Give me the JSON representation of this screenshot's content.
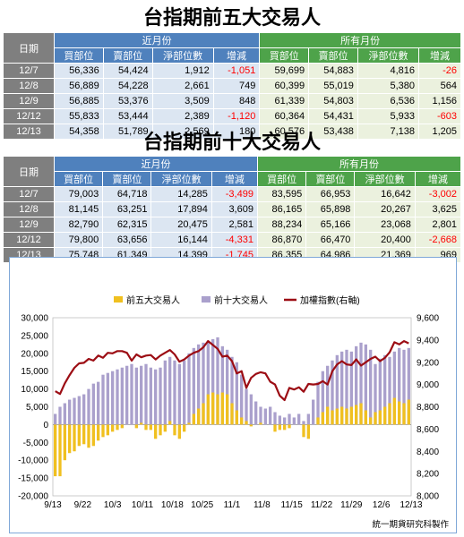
{
  "top5": {
    "title": "台指期前五大交易人",
    "date_header": "日期",
    "group_near": "近月份",
    "group_all": "所有月份",
    "col_headers": [
      "買部位",
      "賣部位",
      "淨部位數",
      "增減",
      "買部位",
      "賣部位",
      "淨部位數",
      "增減"
    ],
    "rows": [
      {
        "date": "12/7",
        "cells": [
          "56,336",
          "54,424",
          "1,912",
          "-1,051",
          "59,699",
          "54,883",
          "4,816",
          "-26"
        ]
      },
      {
        "date": "12/8",
        "cells": [
          "56,889",
          "54,228",
          "2,661",
          "749",
          "60,399",
          "55,019",
          "5,380",
          "564"
        ]
      },
      {
        "date": "12/9",
        "cells": [
          "56,885",
          "53,376",
          "3,509",
          "848",
          "61,339",
          "54,803",
          "6,536",
          "1,156"
        ]
      },
      {
        "date": "12/12",
        "cells": [
          "55,833",
          "53,444",
          "2,389",
          "-1,120",
          "60,364",
          "54,431",
          "5,933",
          "-603"
        ]
      },
      {
        "date": "12/13",
        "cells": [
          "54,358",
          "51,789",
          "2,569",
          "180",
          "60,576",
          "53,438",
          "7,138",
          "1,205"
        ]
      }
    ]
  },
  "top10": {
    "title": "台指期前十大交易人",
    "date_header": "日期",
    "group_near": "近月份",
    "group_all": "所有月份",
    "col_headers": [
      "買部位",
      "賣部位",
      "淨部位數",
      "增減",
      "買部位",
      "賣部位",
      "淨部位數",
      "增減"
    ],
    "rows": [
      {
        "date": "12/7",
        "cells": [
          "79,003",
          "64,718",
          "14,285",
          "-3,499",
          "83,595",
          "66,953",
          "16,642",
          "-3,002"
        ]
      },
      {
        "date": "12/8",
        "cells": [
          "81,145",
          "63,251",
          "17,894",
          "3,609",
          "86,165",
          "65,898",
          "20,267",
          "3,625"
        ]
      },
      {
        "date": "12/9",
        "cells": [
          "82,790",
          "62,315",
          "20,475",
          "2,581",
          "88,234",
          "65,166",
          "23,068",
          "2,801"
        ]
      },
      {
        "date": "12/12",
        "cells": [
          "79,800",
          "63,656",
          "16,144",
          "-4,331",
          "86,870",
          "66,470",
          "20,400",
          "-2,668"
        ]
      },
      {
        "date": "12/13",
        "cells": [
          "75,748",
          "61,349",
          "14,399",
          "-1,745",
          "86,355",
          "64,986",
          "21,369",
          "969"
        ]
      }
    ]
  },
  "colors": {
    "top5_bar": "#f0c020",
    "top10_bar": "#aaa0cc",
    "index_line": "#9c0d14",
    "negative_text": "#ff0000"
  },
  "chart_data": {
    "type": "bar",
    "x_tick_labels": [
      "9/13",
      "9/22",
      "10/3",
      "10/11",
      "10/18",
      "10/25",
      "11/1",
      "11/8",
      "11/15",
      "11/22",
      "11/29",
      "12/6",
      "12/13"
    ],
    "ylim": [
      -20000,
      30000
    ],
    "y_ticks": [
      "30,000",
      "25,000",
      "20,000",
      "15,000",
      "10,000",
      "5,000",
      "0",
      "-5,000",
      "-10,000",
      "-15,000",
      "-20,000"
    ],
    "y2lim": [
      8000,
      9600
    ],
    "y2_ticks": [
      "9,600",
      "9,400",
      "9,200",
      "9,000",
      "8,800",
      "8,600",
      "8,400",
      "8,200",
      "8,000"
    ],
    "legend_position": "top",
    "series": [
      {
        "name": "前五大交易人",
        "type": "bar",
        "values": [
          -14500,
          -14500,
          -10000,
          -8000,
          -7500,
          -6000,
          -5500,
          -6500,
          -6000,
          -4500,
          -3500,
          -3000,
          -2000,
          -1500,
          -1000,
          0,
          0,
          -1000,
          500,
          -1500,
          -1500,
          -4000,
          -3000,
          -2000,
          1000,
          -3000,
          -4000,
          -2000,
          500,
          3000,
          4500,
          6000,
          8500,
          9000,
          8500,
          9000,
          8500,
          6000,
          4000,
          2000,
          1000,
          -500,
          0,
          500,
          0,
          0,
          -2000,
          -1500,
          -1500,
          -1000,
          0,
          0,
          -3500,
          -4000,
          0,
          2000,
          3500,
          5000,
          4000,
          4500,
          5000,
          4500,
          5000,
          5500,
          6000,
          4000,
          2000,
          3500,
          4000,
          5000,
          6000,
          7500,
          6500,
          6000,
          7000
        ]
      },
      {
        "name": "前十大交易人",
        "type": "bar",
        "values": [
          3000,
          5000,
          6000,
          7000,
          7500,
          8000,
          8500,
          10000,
          11500,
          12000,
          14000,
          14500,
          15000,
          15500,
          16000,
          16500,
          17000,
          16000,
          16500,
          17000,
          16000,
          15500,
          16000,
          18000,
          19000,
          18000,
          17000,
          18000,
          20000,
          21500,
          22500,
          23000,
          23500,
          24000,
          24500,
          22000,
          21000,
          19000,
          17500,
          14000,
          10000,
          8500,
          6500,
          5000,
          4500,
          5000,
          3500,
          2500,
          2000,
          3000,
          2000,
          3000,
          1000,
          3000,
          7000,
          12000,
          15000,
          16500,
          18000,
          19500,
          20500,
          21000,
          20500,
          22000,
          23000,
          22500,
          21000,
          17000,
          18500,
          19500,
          19000,
          20500,
          21500,
          21000,
          21500
        ]
      },
      {
        "name": "加權指數(右軸)",
        "type": "line",
        "axis": "right",
        "values": [
          8940,
          8915,
          9010,
          9085,
          9150,
          9190,
          9195,
          9230,
          9215,
          9260,
          9240,
          9285,
          9280,
          9300,
          9300,
          9285,
          9215,
          9270,
          9245,
          9260,
          9265,
          9225,
          9260,
          9285,
          9310,
          9270,
          9205,
          9225,
          9260,
          9285,
          9300,
          9335,
          9390,
          9355,
          9320,
          9250,
          9260,
          9210,
          9100,
          9120,
          8970,
          9060,
          9095,
          9110,
          9100,
          9025,
          9000,
          8900,
          8860,
          8970,
          8955,
          8975,
          8935,
          9005,
          9000,
          9005,
          9030,
          9000,
          9120,
          9180,
          9210,
          9180,
          9175,
          9225,
          9170,
          9200,
          9230,
          9250,
          9210,
          9240,
          9290,
          9380,
          9360,
          9390,
          9370
        ]
      }
    ],
    "caption": "統一期貨研究科製作"
  }
}
